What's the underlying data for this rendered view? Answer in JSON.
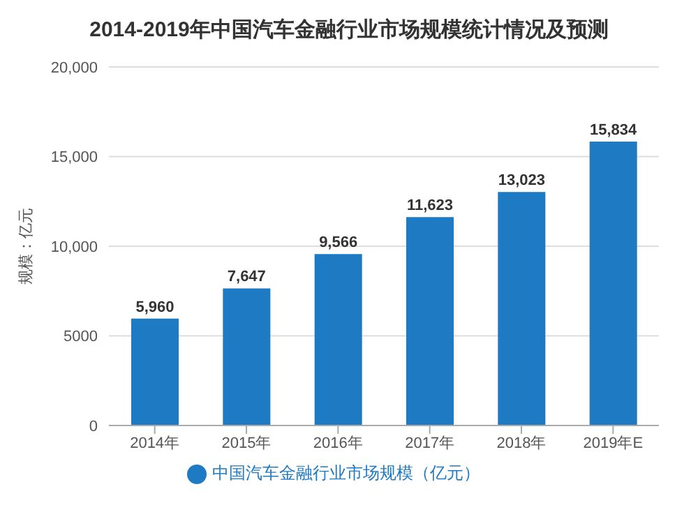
{
  "chart_data": {
    "type": "bar",
    "title": "2014-2019年中国汽车金融行业市场规模统计情况及预测",
    "ylabel": "规模：亿元",
    "categories": [
      "2014年",
      "2015年",
      "2016年",
      "2017年",
      "2018年",
      "2019年E"
    ],
    "series": [
      {
        "name": "中国汽车金融行业市场规模（亿元）",
        "color": "#1f7ac4",
        "values": [
          5960,
          7647,
          9566,
          11623,
          13023,
          15834
        ],
        "value_labels": [
          "5,960",
          "7,647",
          "9,566",
          "11,623",
          "13,023",
          "15,834"
        ]
      }
    ],
    "ylim": [
      0,
      20000
    ],
    "yticks": [
      {
        "value": 0,
        "label": "0"
      },
      {
        "value": 5000,
        "label": "5000"
      },
      {
        "value": 10000,
        "label": "10,000"
      },
      {
        "value": 15000,
        "label": "15,000"
      },
      {
        "value": 20000,
        "label": "20,000"
      }
    ],
    "grid": "y",
    "legend": "bottom"
  }
}
